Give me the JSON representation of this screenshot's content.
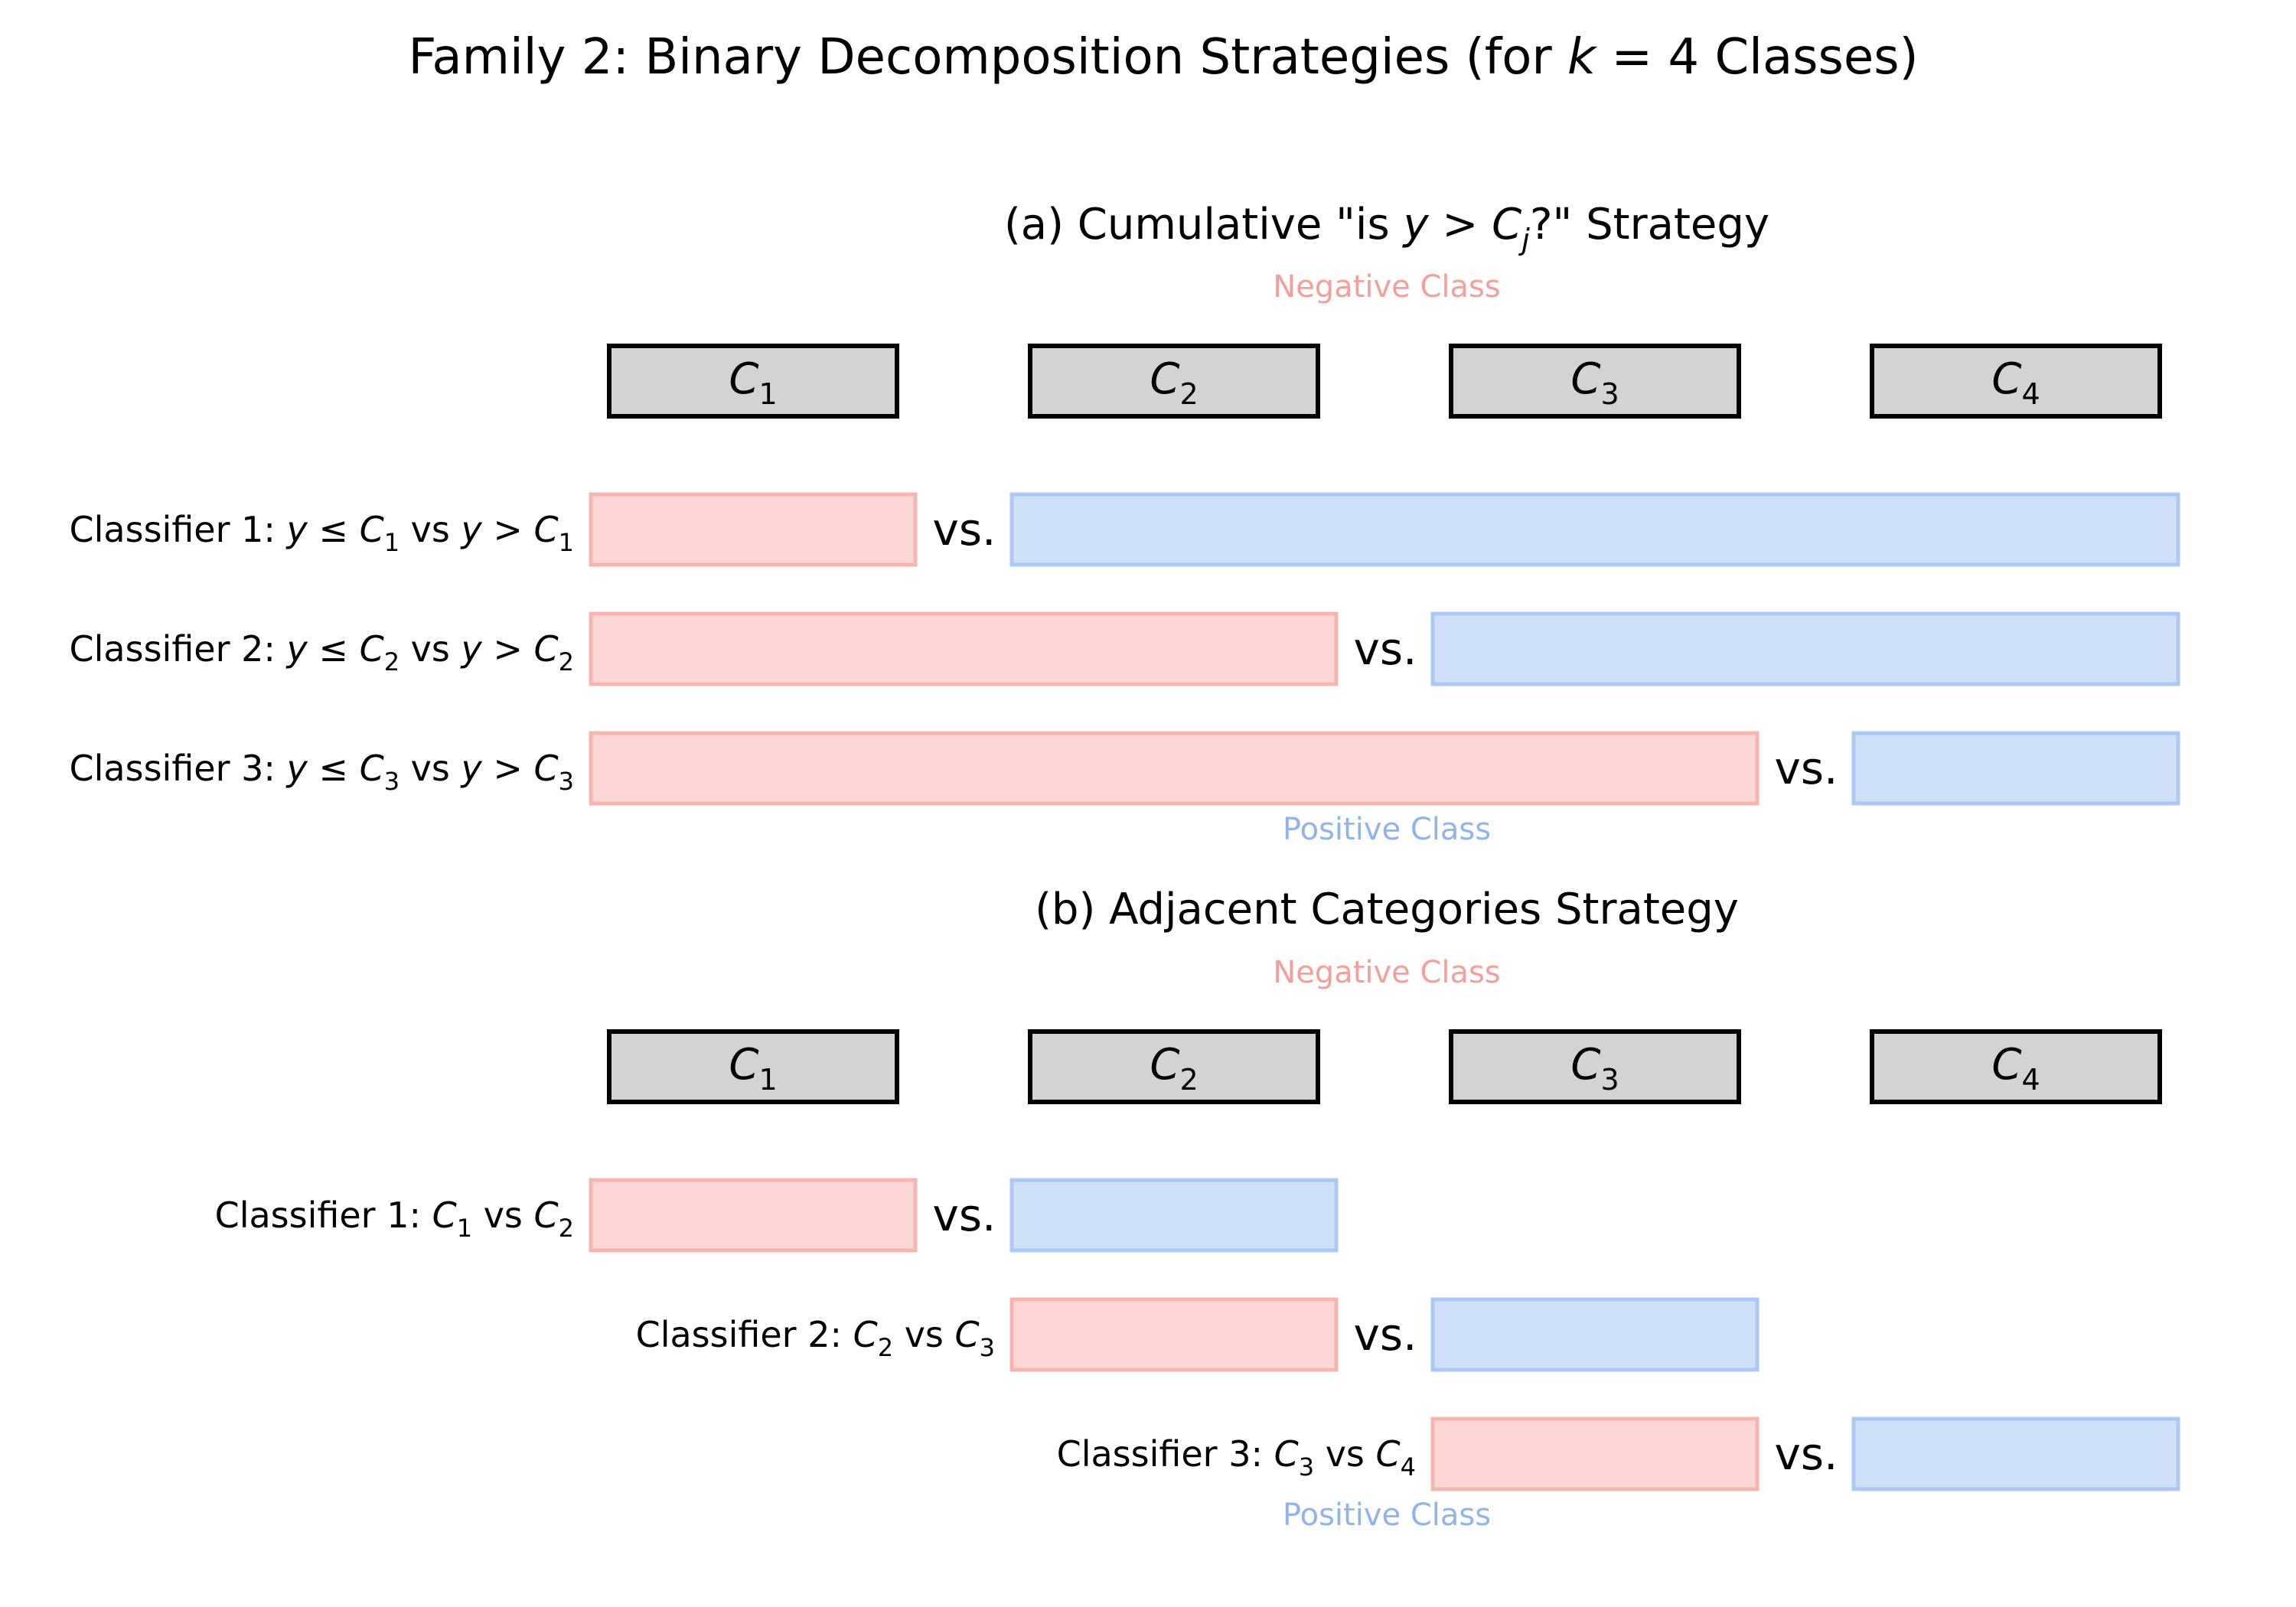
{
  "title": {
    "prefix": "Family 2: Binary Decomposition Strategies (for ",
    "k": "k",
    "eq": " = 4",
    "suffix": " Classes)"
  },
  "colors": {
    "negative_fill": "#fdd6d6",
    "negative_stroke": "#f7b5b1",
    "negative_text": "#f4a09a",
    "positive_fill": "#cfdff8",
    "positive_stroke": "#adc8f5",
    "positive_text": "#92b4ea",
    "class_box_fill": "#d3d3d3",
    "class_box_stroke": "#000000"
  },
  "panel_a": {
    "title_pre": "(a) Cumulative \"is ",
    "title_y": "y",
    "title_gt": " > ",
    "title_C": "C",
    "title_j": "j",
    "title_post": "?\" Strategy",
    "negative_label": "Negative Class",
    "positive_label": "Positive Class",
    "classes": [
      {
        "sym": "C",
        "sub": "1"
      },
      {
        "sym": "C",
        "sub": "2"
      },
      {
        "sym": "C",
        "sub": "3"
      },
      {
        "sym": "C",
        "sub": "4"
      }
    ],
    "classifiers": [
      {
        "prefix": "Classifier 1: ",
        "y1": "y",
        "op1": " ≤ ",
        "c1": "C",
        "s1": "1",
        "mid": " vs ",
        "y2": "y",
        "op2": " > ",
        "c2": "C",
        "s2": "1",
        "vs": "vs.",
        "neg": [
          1,
          1
        ],
        "pos": [
          2,
          4
        ]
      },
      {
        "prefix": "Classifier 2: ",
        "y1": "y",
        "op1": " ≤ ",
        "c1": "C",
        "s1": "2",
        "mid": " vs ",
        "y2": "y",
        "op2": " > ",
        "c2": "C",
        "s2": "2",
        "vs": "vs.",
        "neg": [
          1,
          2
        ],
        "pos": [
          3,
          4
        ]
      },
      {
        "prefix": "Classifier 3: ",
        "y1": "y",
        "op1": " ≤ ",
        "c1": "C",
        "s1": "3",
        "mid": " vs ",
        "y2": "y",
        "op2": " > ",
        "c2": "C",
        "s2": "3",
        "vs": "vs.",
        "neg": [
          1,
          3
        ],
        "pos": [
          4,
          4
        ]
      }
    ]
  },
  "panel_b": {
    "title": "(b) Adjacent Categories Strategy",
    "negative_label": "Negative Class",
    "positive_label": "Positive Class",
    "classes": [
      {
        "sym": "C",
        "sub": "1"
      },
      {
        "sym": "C",
        "sub": "2"
      },
      {
        "sym": "C",
        "sub": "3"
      },
      {
        "sym": "C",
        "sub": "4"
      }
    ],
    "classifiers": [
      {
        "prefix": "Classifier 1: ",
        "c1": "C",
        "s1": "1",
        "mid": " vs ",
        "c2": "C",
        "s2": "2",
        "vs": "vs.",
        "neg": [
          1,
          1
        ],
        "pos": [
          2,
          2
        ]
      },
      {
        "prefix": "Classifier 2: ",
        "c1": "C",
        "s1": "2",
        "mid": " vs ",
        "c2": "C",
        "s2": "3",
        "vs": "vs.",
        "neg": [
          2,
          2
        ],
        "pos": [
          3,
          3
        ]
      },
      {
        "prefix": "Classifier 3: ",
        "c1": "C",
        "s1": "3",
        "mid": " vs ",
        "c2": "C",
        "s2": "4",
        "vs": "vs.",
        "neg": [
          3,
          3
        ],
        "pos": [
          4,
          4
        ]
      }
    ]
  }
}
